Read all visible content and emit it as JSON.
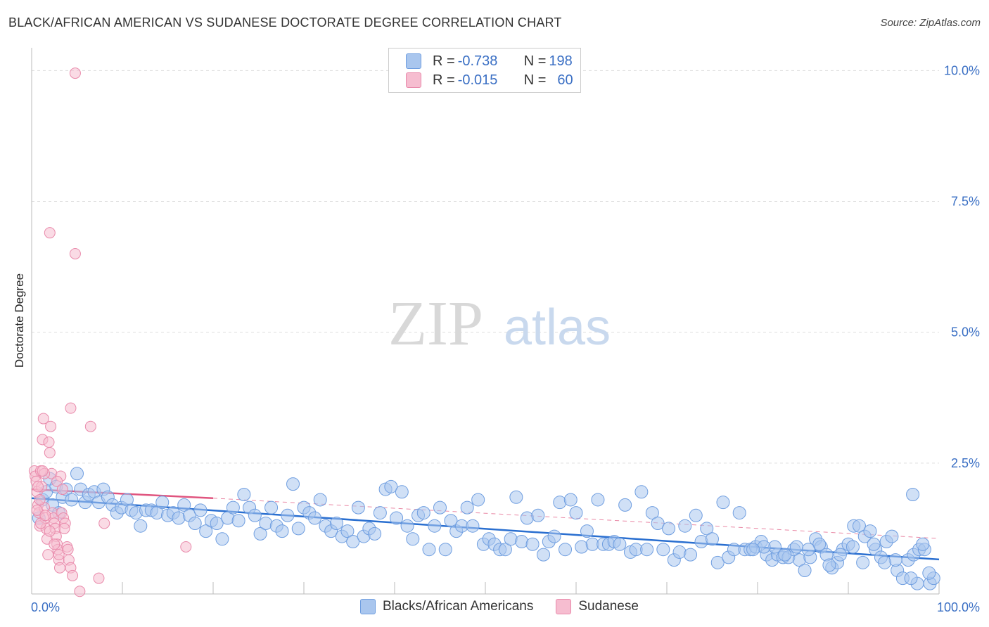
{
  "title": "BLACK/AFRICAN AMERICAN VS SUDANESE DOCTORATE DEGREE CORRELATION CHART",
  "source": "Source: ZipAtlas.com",
  "watermark": {
    "zip": "ZIP",
    "atlas": "atlas"
  },
  "legend": {
    "rows": [
      {
        "r_label": "R =",
        "r_value": "-0.738",
        "n_label": "N =",
        "n_value": "198",
        "color": "#a9c6ee",
        "border": "#6f9ee0"
      },
      {
        "r_label": "R =",
        "r_value": "-0.015",
        "n_label": "N =",
        "n_value": "60",
        "color": "#f6bdd0",
        "border": "#e98aab"
      }
    ]
  },
  "bottom_legend": [
    {
      "label": "Blacks/African Americans",
      "color": "#a9c6ee",
      "border": "#6f9ee0"
    },
    {
      "label": "Sudanese",
      "color": "#f6bdd0",
      "border": "#e98aab"
    }
  ],
  "chart_data": {
    "type": "scatter",
    "title": "BLACK/AFRICAN AMERICAN VS SUDANESE DOCTORATE DEGREE CORRELATION CHART",
    "xlabel": "",
    "ylabel": "Doctorate Degree",
    "xlim": [
      0,
      100
    ],
    "ylim": [
      0,
      10.3
    ],
    "x_tick_labels": [
      "0.0%",
      "100.0%"
    ],
    "y_ticks": [
      2.5,
      5.0,
      7.5,
      10.0
    ],
    "y_tick_labels": [
      "2.5%",
      "5.0%",
      "7.5%",
      "10.0%"
    ],
    "grid": true,
    "series": [
      {
        "name": "Blacks/African Americans",
        "color": "#a9c6ee",
        "stroke": "#6f9ee0",
        "trend": {
          "x": [
            0,
            100
          ],
          "y": [
            1.83,
            0.66
          ],
          "color": "#2a6fd0"
        },
        "points": [
          [
            0.8,
            1.45
          ],
          [
            1.2,
            1.8
          ],
          [
            1.6,
            1.95
          ],
          [
            2.0,
            2.2
          ],
          [
            2.3,
            1.7
          ],
          [
            2.7,
            2.05
          ],
          [
            3.0,
            1.55
          ],
          [
            3.4,
            1.85
          ],
          [
            3.8,
            2.0
          ],
          [
            4.4,
            1.8
          ],
          [
            5.0,
            2.3
          ],
          [
            5.4,
            2.0
          ],
          [
            5.9,
            1.75
          ],
          [
            6.3,
            1.9
          ],
          [
            6.9,
            1.95
          ],
          [
            7.4,
            1.75
          ],
          [
            7.9,
            2.0
          ],
          [
            8.4,
            1.85
          ],
          [
            8.9,
            1.7
          ],
          [
            9.4,
            1.55
          ],
          [
            9.9,
            1.65
          ],
          [
            10.5,
            1.8
          ],
          [
            11.0,
            1.6
          ],
          [
            11.5,
            1.55
          ],
          [
            12.0,
            1.3
          ],
          [
            12.6,
            1.6
          ],
          [
            13.2,
            1.6
          ],
          [
            13.8,
            1.55
          ],
          [
            14.4,
            1.75
          ],
          [
            15.0,
            1.5
          ],
          [
            15.6,
            1.55
          ],
          [
            16.2,
            1.45
          ],
          [
            16.8,
            1.7
          ],
          [
            17.4,
            1.5
          ],
          [
            18.0,
            1.35
          ],
          [
            18.6,
            1.6
          ],
          [
            19.2,
            1.2
          ],
          [
            19.8,
            1.4
          ],
          [
            20.4,
            1.35
          ],
          [
            21.0,
            1.05
          ],
          [
            21.6,
            1.45
          ],
          [
            22.2,
            1.65
          ],
          [
            22.8,
            1.4
          ],
          [
            23.4,
            1.9
          ],
          [
            24.0,
            1.65
          ],
          [
            24.6,
            1.5
          ],
          [
            25.2,
            1.15
          ],
          [
            25.8,
            1.35
          ],
          [
            26.4,
            1.65
          ],
          [
            27.0,
            1.3
          ],
          [
            27.6,
            1.2
          ],
          [
            28.2,
            1.5
          ],
          [
            28.8,
            2.1
          ],
          [
            29.4,
            1.25
          ],
          [
            30.0,
            1.65
          ],
          [
            30.6,
            1.55
          ],
          [
            31.2,
            1.45
          ],
          [
            31.8,
            1.8
          ],
          [
            32.4,
            1.3
          ],
          [
            33.0,
            1.2
          ],
          [
            33.6,
            1.35
          ],
          [
            34.2,
            1.1
          ],
          [
            34.8,
            1.2
          ],
          [
            35.4,
            1.0
          ],
          [
            36.0,
            1.65
          ],
          [
            36.6,
            1.1
          ],
          [
            37.2,
            1.25
          ],
          [
            37.8,
            1.15
          ],
          [
            38.4,
            1.55
          ],
          [
            39.0,
            2.0
          ],
          [
            39.6,
            2.05
          ],
          [
            40.2,
            1.45
          ],
          [
            40.8,
            1.95
          ],
          [
            41.4,
            1.3
          ],
          [
            42.0,
            1.05
          ],
          [
            42.6,
            1.5
          ],
          [
            43.2,
            1.55
          ],
          [
            43.8,
            0.85
          ],
          [
            44.4,
            1.3
          ],
          [
            45.0,
            1.65
          ],
          [
            45.6,
            0.85
          ],
          [
            46.2,
            1.4
          ],
          [
            46.8,
            1.2
          ],
          [
            47.4,
            1.3
          ],
          [
            48.0,
            1.65
          ],
          [
            48.6,
            1.3
          ],
          [
            49.2,
            1.8
          ],
          [
            49.8,
            0.95
          ],
          [
            50.4,
            1.05
          ],
          [
            51.0,
            0.95
          ],
          [
            51.6,
            0.85
          ],
          [
            52.2,
            0.85
          ],
          [
            52.8,
            1.05
          ],
          [
            53.4,
            1.85
          ],
          [
            54.0,
            1.0
          ],
          [
            54.6,
            1.45
          ],
          [
            55.2,
            0.95
          ],
          [
            55.8,
            1.5
          ],
          [
            56.4,
            0.75
          ],
          [
            57.0,
            1.0
          ],
          [
            57.6,
            1.1
          ],
          [
            58.2,
            1.75
          ],
          [
            58.8,
            0.85
          ],
          [
            59.4,
            1.8
          ],
          [
            60.0,
            1.55
          ],
          [
            60.6,
            0.9
          ],
          [
            61.2,
            1.2
          ],
          [
            61.8,
            0.95
          ],
          [
            62.4,
            1.8
          ],
          [
            63.0,
            0.95
          ],
          [
            63.6,
            0.95
          ],
          [
            64.2,
            1.0
          ],
          [
            64.8,
            0.95
          ],
          [
            65.4,
            1.7
          ],
          [
            66.0,
            0.8
          ],
          [
            66.6,
            0.85
          ],
          [
            67.2,
            1.95
          ],
          [
            67.8,
            0.85
          ],
          [
            68.4,
            1.55
          ],
          [
            69.0,
            1.35
          ],
          [
            69.6,
            0.85
          ],
          [
            70.2,
            1.25
          ],
          [
            70.8,
            0.65
          ],
          [
            71.4,
            0.8
          ],
          [
            72.0,
            1.3
          ],
          [
            72.6,
            0.75
          ],
          [
            73.2,
            1.5
          ],
          [
            73.8,
            1.0
          ],
          [
            74.4,
            1.25
          ],
          [
            75.0,
            1.05
          ],
          [
            75.6,
            0.6
          ],
          [
            76.2,
            1.75
          ],
          [
            76.8,
            0.7
          ],
          [
            77.4,
            0.85
          ],
          [
            78.0,
            1.55
          ],
          [
            78.6,
            0.85
          ],
          [
            79.2,
            0.85
          ],
          [
            79.8,
            0.9
          ],
          [
            80.4,
            1.0
          ],
          [
            81.0,
            0.75
          ],
          [
            81.6,
            0.65
          ],
          [
            82.2,
            0.75
          ],
          [
            82.8,
            0.7
          ],
          [
            83.4,
            0.7
          ],
          [
            84.0,
            0.85
          ],
          [
            84.6,
            0.65
          ],
          [
            85.2,
            0.45
          ],
          [
            85.8,
            0.7
          ],
          [
            86.4,
            1.05
          ],
          [
            87.0,
            0.9
          ],
          [
            87.6,
            0.75
          ],
          [
            88.2,
            0.5
          ],
          [
            88.8,
            0.6
          ],
          [
            89.4,
            0.85
          ],
          [
            90.0,
            0.95
          ],
          [
            90.6,
            1.3
          ],
          [
            91.2,
            1.3
          ],
          [
            91.8,
            1.1
          ],
          [
            92.4,
            1.2
          ],
          [
            93.0,
            0.85
          ],
          [
            93.6,
            0.7
          ],
          [
            94.2,
            1.0
          ],
          [
            94.8,
            1.1
          ],
          [
            95.4,
            0.45
          ],
          [
            96.0,
            0.3
          ],
          [
            96.6,
            0.65
          ],
          [
            97.2,
            0.75
          ],
          [
            97.8,
            0.85
          ],
          [
            98.4,
            0.85
          ],
          [
            99.0,
            0.2
          ],
          [
            99.4,
            0.3
          ],
          [
            98.9,
            0.4
          ],
          [
            97.6,
            0.2
          ],
          [
            96.9,
            0.3
          ],
          [
            95.2,
            0.65
          ],
          [
            94.0,
            0.6
          ],
          [
            92.8,
            0.95
          ],
          [
            91.6,
            0.6
          ],
          [
            90.5,
            0.9
          ],
          [
            89.1,
            0.75
          ],
          [
            87.9,
            0.55
          ],
          [
            86.8,
            0.95
          ],
          [
            85.6,
            0.85
          ],
          [
            84.3,
            0.9
          ],
          [
            83.0,
            0.75
          ],
          [
            81.9,
            0.9
          ],
          [
            80.7,
            0.9
          ],
          [
            79.5,
            0.85
          ],
          [
            97.1,
            1.9
          ],
          [
            98.2,
            0.95
          ]
        ]
      },
      {
        "name": "Sudanese",
        "color": "#f6bdd0",
        "stroke": "#e98aab",
        "trend": {
          "x": [
            0,
            20
          ],
          "y": [
            2.0,
            1.83
          ],
          "color": "#e0557f",
          "ext_x": [
            20,
            100
          ],
          "ext_y": [
            1.83,
            1.06
          ]
        },
        "points": [
          [
            0.3,
            2.35
          ],
          [
            0.4,
            2.25
          ],
          [
            0.5,
            2.15
          ],
          [
            0.6,
            1.95
          ],
          [
            0.7,
            1.7
          ],
          [
            0.8,
            1.55
          ],
          [
            0.9,
            1.3
          ],
          [
            1.0,
            2.35
          ],
          [
            1.1,
            2.05
          ],
          [
            1.2,
            2.95
          ],
          [
            1.3,
            3.35
          ],
          [
            1.4,
            1.65
          ],
          [
            1.5,
            1.45
          ],
          [
            1.6,
            1.25
          ],
          [
            1.7,
            1.05
          ],
          [
            1.8,
            0.75
          ],
          [
            1.9,
            2.9
          ],
          [
            2.0,
            2.7
          ],
          [
            2.1,
            3.2
          ],
          [
            2.2,
            2.3
          ],
          [
            2.3,
            1.55
          ],
          [
            2.4,
            1.45
          ],
          [
            2.5,
            1.35
          ],
          [
            2.6,
            1.25
          ],
          [
            2.7,
            1.1
          ],
          [
            2.8,
            0.95
          ],
          [
            2.9,
            0.85
          ],
          [
            3.0,
            0.65
          ],
          [
            3.1,
            0.5
          ],
          [
            3.3,
            1.55
          ],
          [
            3.5,
            1.45
          ],
          [
            3.7,
            1.35
          ],
          [
            3.9,
            0.9
          ],
          [
            4.1,
            0.65
          ],
          [
            4.3,
            0.5
          ],
          [
            4.5,
            0.35
          ],
          [
            2.0,
            6.9
          ],
          [
            4.8,
            9.95
          ],
          [
            4.8,
            6.5
          ],
          [
            4.3,
            3.55
          ],
          [
            6.5,
            3.2
          ],
          [
            3.2,
            2.25
          ],
          [
            2.8,
            2.15
          ],
          [
            1.4,
            2.3
          ],
          [
            0.9,
            1.8
          ],
          [
            0.6,
            1.6
          ],
          [
            1.0,
            1.35
          ],
          [
            1.5,
            1.5
          ],
          [
            2.0,
            1.2
          ],
          [
            2.5,
            0.95
          ],
          [
            3.0,
            0.75
          ],
          [
            3.6,
            1.25
          ],
          [
            4.0,
            0.85
          ],
          [
            0.7,
            2.05
          ],
          [
            1.2,
            2.35
          ],
          [
            7.4,
            0.3
          ],
          [
            5.3,
            0.05
          ],
          [
            8.0,
            1.35
          ],
          [
            17.0,
            0.9
          ],
          [
            3.4,
            2.0
          ]
        ]
      }
    ]
  }
}
